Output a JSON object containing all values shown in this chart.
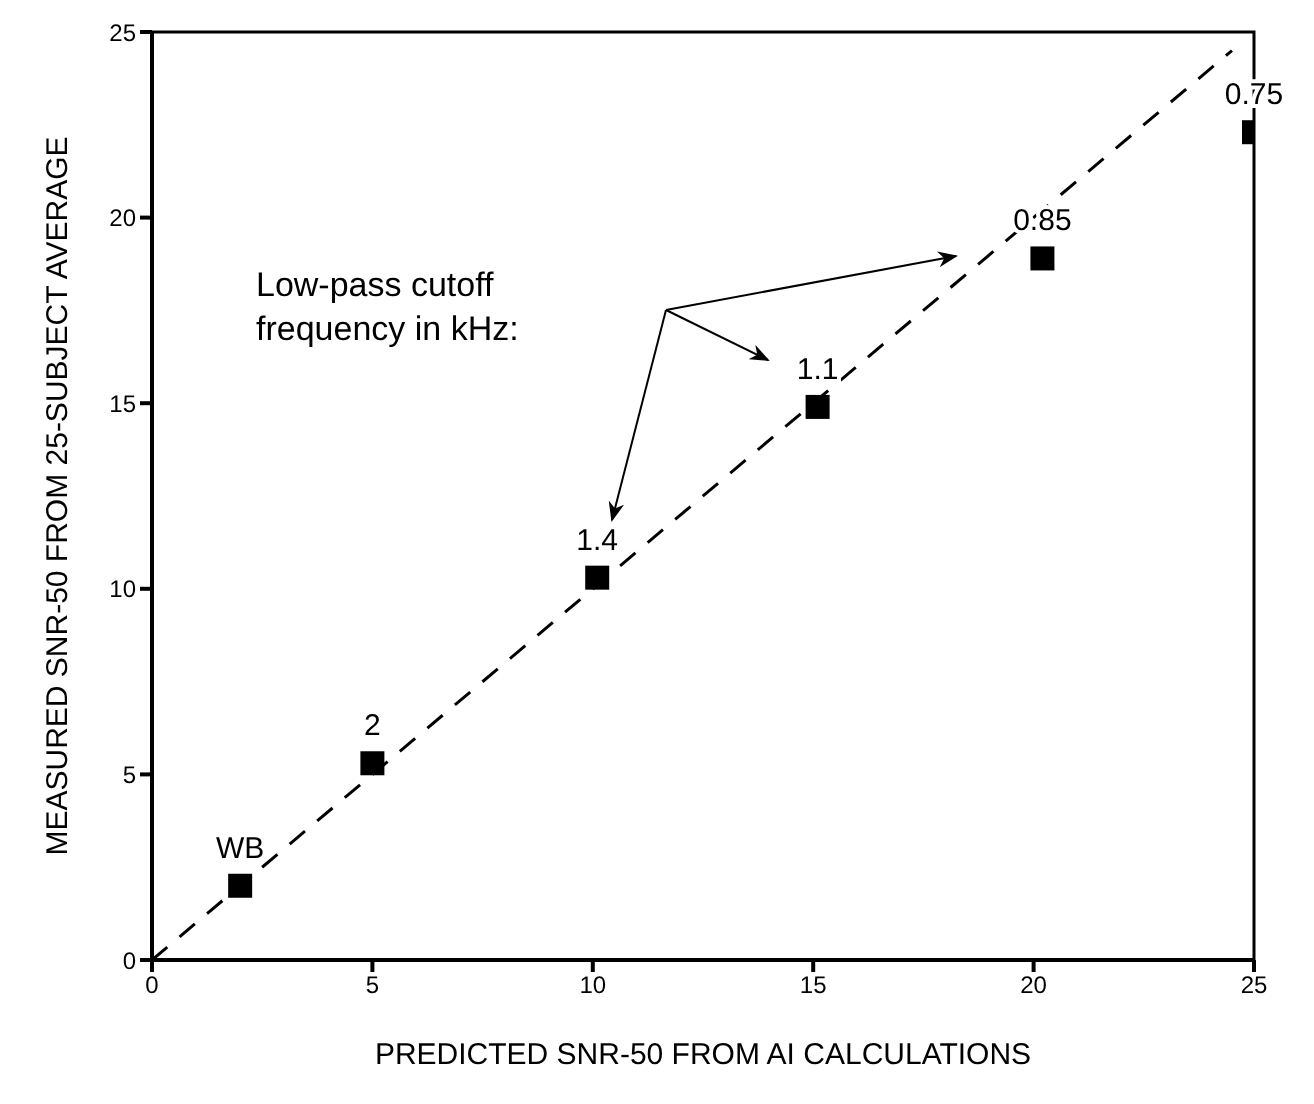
{
  "chart_data": {
    "type": "scatter",
    "xlabel": "PREDICTED SNR-50 FROM AI CALCULATIONS",
    "ylabel": "MEASURED SNR-50 FROM 25-SUBJECT AVERAGE",
    "annotations": [
      "Low-pass cutoff frequency in kHz:",
      {
        "text": "WB",
        "x": 2,
        "y": 2
      },
      {
        "text": "2",
        "x": 5,
        "y": 5.3
      },
      {
        "text": "1.4",
        "x": 10.1,
        "y": 10.3
      },
      {
        "text": "1.1",
        "x": 15.1,
        "y": 14.9
      },
      {
        "text": "0.85",
        "x": 20.2,
        "y": 18.9
      },
      {
        "text": "0.75",
        "x": 25,
        "y": 22.3
      }
    ],
    "x": [
      2,
      5,
      10.1,
      15.1,
      20.2,
      25
    ],
    "series": [
      {
        "color": "#000000",
        "values": [
          2,
          5.3,
          10.3,
          14.9,
          18.9,
          22.3
        ],
        "marker": "square"
      },
      {
        "type": "line",
        "color": "#000000",
        "x": [
          0,
          24.5
        ],
        "values": [
          0,
          24.5
        ],
        "line_style": "dashed",
        "marker": "none"
      }
    ],
    "xlim": [
      0,
      25
    ],
    "ylim": [
      0,
      25
    ],
    "xticks": [
      0,
      5,
      10,
      15,
      20,
      25
    ],
    "yticks": [
      0,
      5,
      10,
      15,
      20,
      25
    ],
    "grid": false,
    "legend": false
  }
}
